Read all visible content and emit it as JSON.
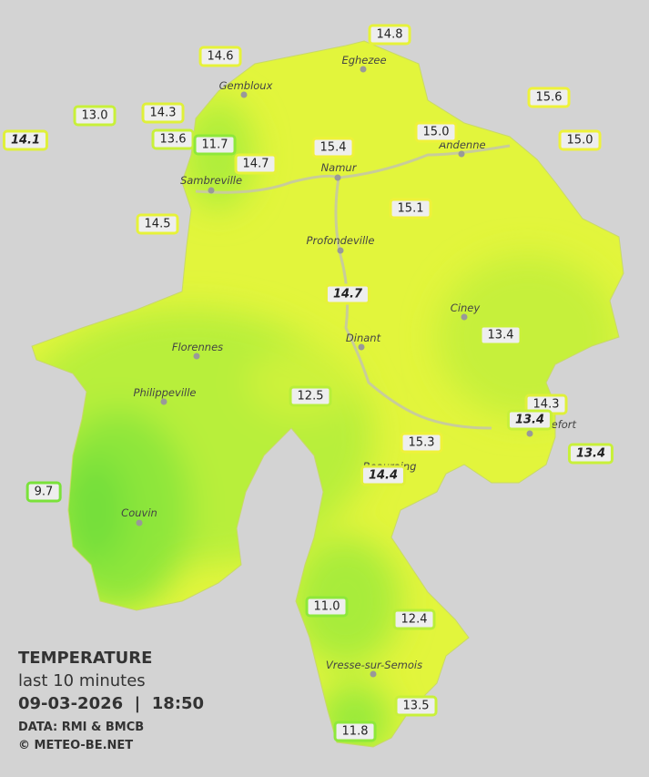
{
  "map": {
    "cities": [
      "Eghezee",
      "Gembloux",
      "Andenne",
      "Namur",
      "Sambreville",
      "Profondeville",
      "Ciney",
      "Dinant",
      "Florennes",
      "Philippeville",
      "Couvin",
      "Vresse-sur-Semois",
      "Beauraing",
      "Rochefort"
    ],
    "stations": [
      {
        "label": "14.8",
        "color": "#e6f23a"
      },
      {
        "label": "14.6",
        "color": "#e6f23a"
      },
      {
        "label": "13.0",
        "color": "#c8f03a"
      },
      {
        "label": "14.3",
        "color": "#dff03a"
      },
      {
        "label": "14.1",
        "color": "#dff03a",
        "italic": true
      },
      {
        "label": "13.6",
        "color": "#c8f03a"
      },
      {
        "label": "11.7",
        "color": "#8ee83a"
      },
      {
        "label": "15.6",
        "color": "#eef23a"
      },
      {
        "label": "15.0",
        "color": "#eef23a"
      },
      {
        "label": "15.0",
        "color": "#eef23a"
      },
      {
        "label": "15.4",
        "color": "#eef23a"
      },
      {
        "label": "14.7",
        "color": "#e6f23a"
      },
      {
        "label": "14.5",
        "color": "#e6f23a"
      },
      {
        "label": "15.1",
        "color": "#eef23a"
      },
      {
        "label": "14.7",
        "color": "#e6f23a",
        "italic": true
      },
      {
        "label": "13.4",
        "color": "#c8f03a"
      },
      {
        "label": "12.5",
        "color": "#b8ee3a"
      },
      {
        "label": "14.3",
        "color": "#dff03a"
      },
      {
        "label": "13.4",
        "color": "#c8f03a",
        "italic": true
      },
      {
        "label": "15.3",
        "color": "#eef23a"
      },
      {
        "label": "13.4",
        "color": "#c8f03a",
        "italic": true
      },
      {
        "label": "14.4",
        "color": "#dff03a",
        "italic": true
      },
      {
        "label": "9.7",
        "color": "#7ae23a"
      },
      {
        "label": "11.0",
        "color": "#8ee83a"
      },
      {
        "label": "12.4",
        "color": "#b8ee3a"
      },
      {
        "label": "13.5",
        "color": "#c8f03a"
      },
      {
        "label": "11.8",
        "color": "#8ee83a"
      }
    ]
  },
  "legend": {
    "title": "TEMPERATURE",
    "subtitle": "last 10 minutes",
    "datetime": "09-03-2026  |  18:50",
    "source": "DATA: RMI & BMCB",
    "copyright": "© METEO-BE.NET"
  }
}
